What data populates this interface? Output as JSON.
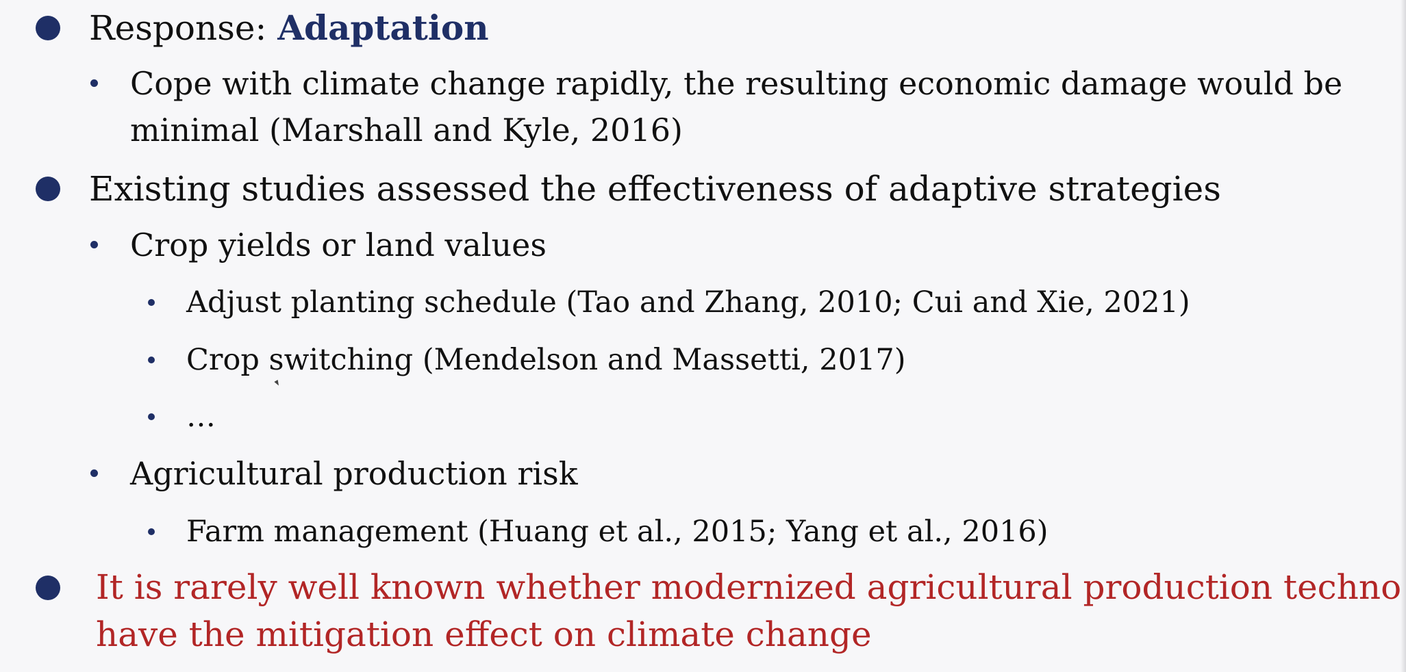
{
  "slide": {
    "bullet1": {
      "prefix": "Response: ",
      "emphasis": "Adaptation",
      "sub1": {
        "line1": "Cope with climate change rapidly, the resulting economic damage would be",
        "line2": "minimal (Marshall and Kyle, 2016)"
      }
    },
    "bullet2": {
      "text": "Existing studies assessed the effectiveness of adaptive strategies",
      "sub1": {
        "text": "Crop yields or land values",
        "items": [
          "Adjust planting schedule (Tao and Zhang, 2010; Cui and Xie, 2021)",
          "Crop switching (Mendelson and Massetti, 2017)",
          "…"
        ]
      },
      "sub2": {
        "text": "Agricultural production risk",
        "items": [
          "Farm management (Huang et al., 2015; Yang et al., 2016)"
        ]
      }
    },
    "bullet3": {
      "line1": "It is rarely well known whether modernized agricultural production technology",
      "line2": "have the mitigation effect on climate change"
    }
  },
  "colors": {
    "bullet": "#1f2f66",
    "emphasis": "#1f2f66",
    "highlight_text": "#b22626",
    "background": "#f7f7f9"
  }
}
